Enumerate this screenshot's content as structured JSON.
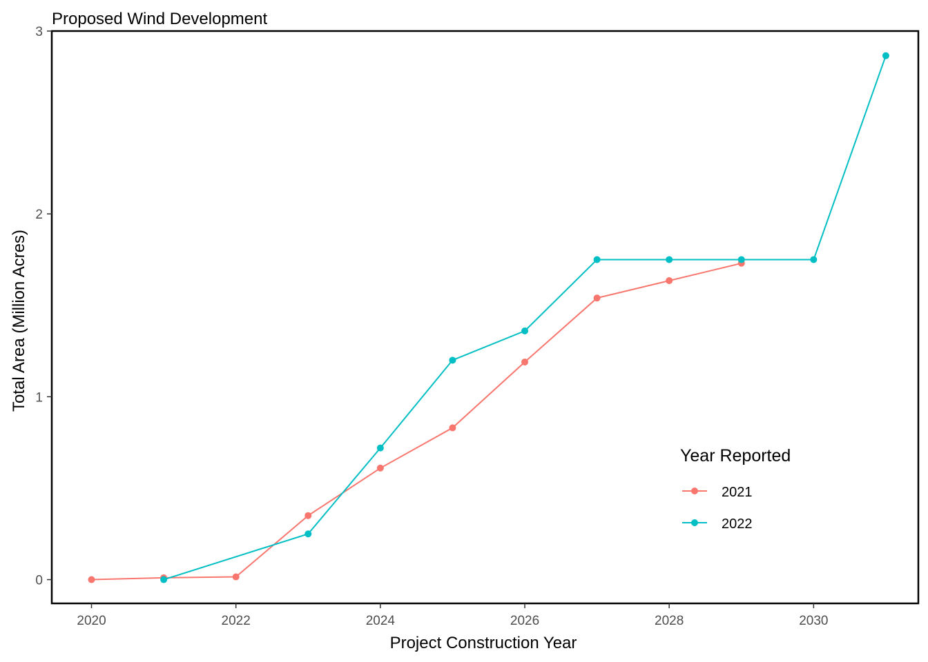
{
  "chart_data": {
    "type": "line",
    "title": "Proposed Wind Development",
    "xlabel": "Project Construction Year",
    "ylabel": "Total Area (Million Acres)",
    "xlim": [
      2019.45,
      2031.45
    ],
    "ylim": [
      -0.13,
      3.0
    ],
    "x_ticks": [
      2020,
      2022,
      2024,
      2026,
      2028,
      2030
    ],
    "y_ticks": [
      0,
      1,
      2,
      3
    ],
    "grid": false,
    "legend": {
      "title": "Year Reported",
      "placement": "inside-bottom-right"
    },
    "series": [
      {
        "name": "2021",
        "color": "#F8766D",
        "x": [
          2020,
          2021,
          2022,
          2023,
          2024,
          2025,
          2026,
          2027,
          2028,
          2029
        ],
        "y": [
          0.0,
          0.01,
          0.015,
          0.35,
          0.61,
          0.83,
          1.19,
          1.54,
          1.635,
          1.73
        ]
      },
      {
        "name": "2022",
        "color": "#00BFC4",
        "x": [
          2021,
          2023,
          2024,
          2025,
          2026,
          2027,
          2028,
          2029,
          2030,
          2031
        ],
        "y": [
          0.0,
          0.25,
          0.72,
          1.2,
          1.36,
          1.75,
          1.75,
          1.75,
          1.75,
          2.865
        ]
      }
    ]
  }
}
